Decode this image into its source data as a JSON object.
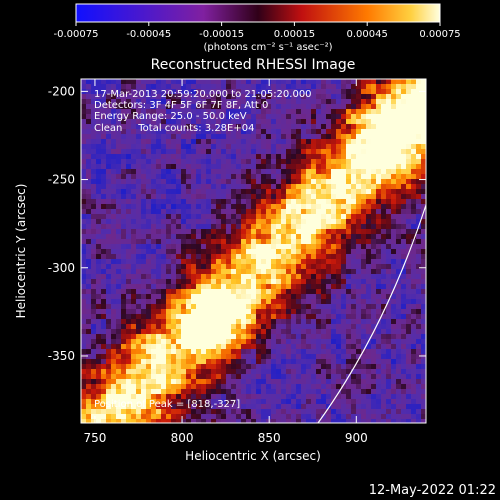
{
  "colorbar": {
    "ticks": [
      {
        "value": -0.00075,
        "label": "-0.00075"
      },
      {
        "value": -0.00045,
        "label": "-0.00045"
      },
      {
        "value": -0.00015,
        "label": "-0.00015"
      },
      {
        "value": 0.00015,
        "label": "0.00015"
      },
      {
        "value": 0.00045,
        "label": "0.00045"
      },
      {
        "value": 0.00075,
        "label": "0.00075"
      }
    ],
    "unit_label": "(photons cm⁻² s⁻¹ asec⁻²)",
    "range": [
      -0.00075,
      0.00075
    ]
  },
  "chart_data": {
    "type": "heatmap",
    "title": "Reconstructed RHESSI Image",
    "xlabel": "Heliocentric X (arcsec)",
    "ylabel": "Heliocentric Y (arcsec)",
    "xlim": [
      742,
      940
    ],
    "ylim": [
      -388,
      -193
    ],
    "xticks": [
      {
        "value": 750,
        "label": "750"
      },
      {
        "value": 800,
        "label": "800"
      },
      {
        "value": 850,
        "label": "850"
      },
      {
        "value": 900,
        "label": "900"
      }
    ],
    "yticks": [
      {
        "value": -200,
        "label": "-200"
      },
      {
        "value": -250,
        "label": "-250"
      },
      {
        "value": -300,
        "label": "-300"
      },
      {
        "value": -350,
        "label": "-350"
      }
    ],
    "peak": [
      818,
      -327
    ],
    "info_lines": [
      "17-Mar-2013 20:59:20.000 to 21:05:20.000",
      "Detectors: 3F 4F 5F 6F 7F 8F, Att 0",
      "Energy Range: 25.0 - 50.0 keV",
      "Clean     Total counts: 3.28E+04"
    ],
    "peak_label": "Position of Peak = [818,-327]"
  },
  "timestamp": "12-May-2022 01:22"
}
